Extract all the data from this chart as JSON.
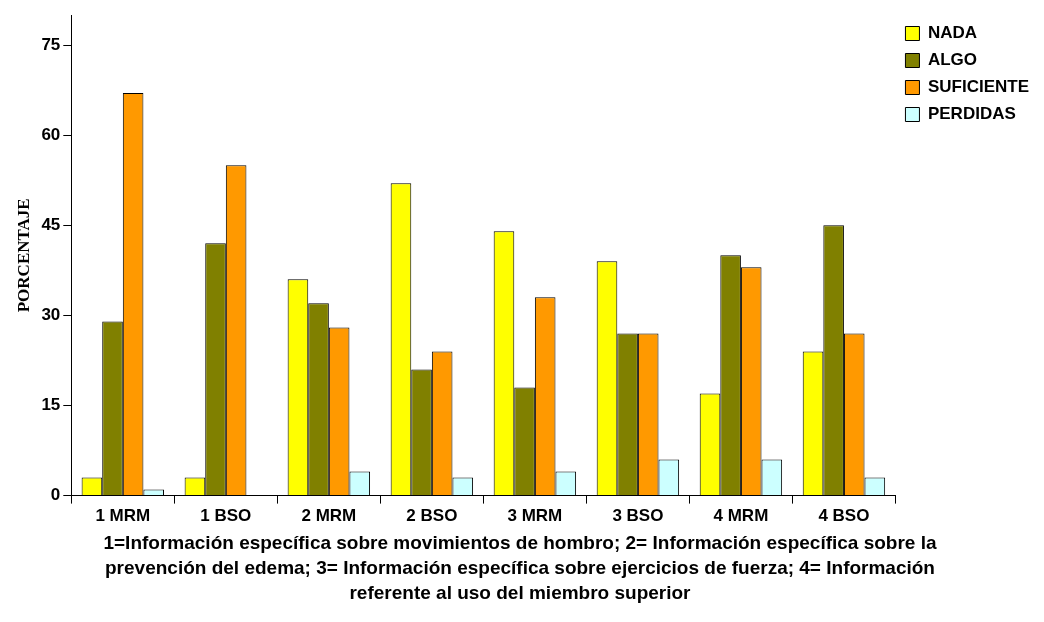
{
  "chart_data": {
    "type": "bar",
    "categories": [
      "1 MRM",
      "1 BSO",
      "2 MRM",
      "2 BSO",
      "3 MRM",
      "3 BSO",
      "4 MRM",
      "4 BSO"
    ],
    "series": [
      {
        "name": "NADA",
        "color": "#ffff00",
        "values": [
          3,
          3,
          36,
          52,
          44,
          39,
          17,
          24
        ]
      },
      {
        "name": "ALGO",
        "color": "#808000",
        "values": [
          29,
          42,
          32,
          21,
          18,
          27,
          40,
          45
        ]
      },
      {
        "name": "SUFICIENTE",
        "color": "#ff9900",
        "values": [
          67,
          55,
          28,
          24,
          33,
          27,
          38,
          27
        ]
      },
      {
        "name": "PERDIDAS",
        "color": "#ccffff",
        "values": [
          1,
          null,
          4,
          3,
          4,
          6,
          6,
          3
        ]
      }
    ],
    "ylabel": "PORCENTAJE",
    "xlabel": "1=Información específica sobre movimientos de hombro; 2= Información específica sobre la prevención del edema; 3= Información específica sobre ejercicios de fuerza; 4= Información referente al uso del miembro superior",
    "ylim": [
      0,
      80
    ],
    "yticks": [
      0,
      15,
      30,
      45,
      60,
      75
    ],
    "grid": false,
    "legend": "top right"
  }
}
